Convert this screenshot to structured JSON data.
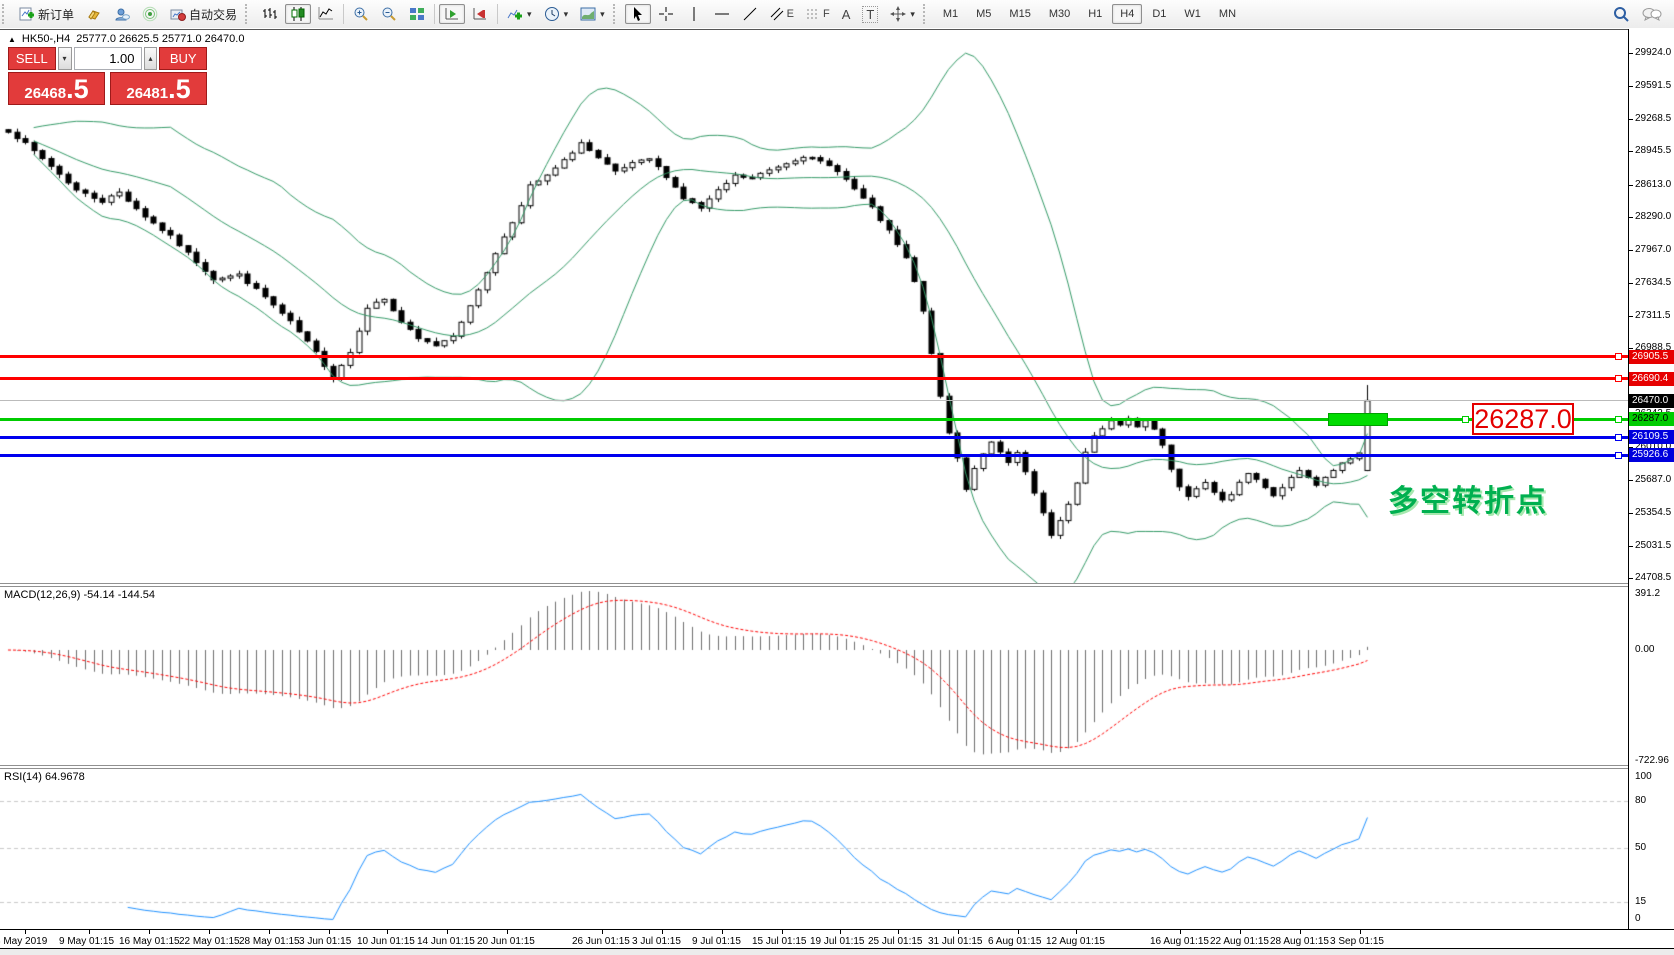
{
  "toolbar": {
    "new_order_label": "新订单",
    "auto_trading_label": "自动交易",
    "timeframes": [
      "M1",
      "M5",
      "M15",
      "M30",
      "H1",
      "H4",
      "D1",
      "W1",
      "MN"
    ],
    "active_timeframe": "H4",
    "tool_letters": {
      "channel": "E",
      "fibonacci": "F",
      "text": "A",
      "label": "T"
    },
    "volume_arrows": {
      "down": "▾",
      "up": "▴"
    },
    "dropdown_glyph": "▾"
  },
  "chart": {
    "title": {
      "collapse_glyph": "▲",
      "symbol_period": "HK50-,H4",
      "ohlc_text": "25777.0 26625.5 25771.0 26470.0"
    },
    "trade_panel": {
      "sell_label": "SELL",
      "buy_label": "BUY",
      "volume": "1.00",
      "sell_price_main": "26468",
      "sell_price_frac": ".5",
      "buy_price_main": "26481",
      "buy_price_frac": ".5"
    },
    "price_axis_ticks": [
      "29924.0",
      "29591.5",
      "29268.5",
      "28945.5",
      "28613.0",
      "28290.0",
      "27967.0",
      "27634.5",
      "27311.5",
      "26988.5",
      "26665.5",
      "26342.5",
      "26010.0",
      "25687.0",
      "25354.5",
      "25031.5",
      "24708.5"
    ],
    "price_tags": [
      {
        "label": "26905.5",
        "price": 26905.5,
        "bg": "#e60000",
        "fg": "#ffffff"
      },
      {
        "label": "26690.4",
        "price": 26690.4,
        "bg": "#e60000",
        "fg": "#ffffff"
      },
      {
        "label": "26470.0",
        "price": 26470.0,
        "bg": "#000000",
        "fg": "#ffffff"
      },
      {
        "label": "26287.0",
        "price": 26287.0,
        "bg": "#00cc00",
        "fg": "#000000"
      },
      {
        "label": "26109.5",
        "price": 26109.5,
        "bg": "#0000dd",
        "fg": "#ffffff"
      },
      {
        "label": "25926.6",
        "price": 25926.6,
        "bg": "#0000dd",
        "fg": "#ffffff"
      }
    ],
    "hlines": [
      {
        "price": 26905.5,
        "color": "#ff0000",
        "thickness": 3
      },
      {
        "price": 26690.4,
        "color": "#ff0000",
        "thickness": 3
      },
      {
        "price": 26470.0,
        "color": "#bbbbbb",
        "thickness": 1
      },
      {
        "price": 26287.0,
        "color": "#00cc00",
        "thickness": 3
      },
      {
        "price": 26109.5,
        "color": "#0000ee",
        "thickness": 3
      },
      {
        "price": 25926.6,
        "color": "#0000ee",
        "thickness": 3
      }
    ],
    "callout": {
      "text": "26287.0"
    },
    "annotation": {
      "text": "多空转折点"
    }
  },
  "indicators": {
    "macd": {
      "label": "MACD(12,26,9)",
      "values": "-54.14 -144.54",
      "axis": [
        "391.2",
        "0.00",
        "-722.96"
      ]
    },
    "rsi": {
      "label": "RSI(14)",
      "value": "64.9678",
      "axis": [
        "100",
        "80",
        "50",
        "15",
        "0"
      ]
    }
  },
  "date_axis": {
    "labels": [
      "3 May 2019",
      "9 May 01:15",
      "16 May 01:15",
      "22 May 01:15",
      "28 May 01:15",
      "3 Jun 01:15",
      "10 Jun 01:15",
      "14 Jun 01:15",
      "20 Jun 01:15",
      "26 Jun 01:15",
      "3 Jul 01:15",
      "9 Jul 01:15",
      "15 Jul 01:15",
      "19 Jul 01:15",
      "25 Jul 01:15",
      "31 Jul 01:15",
      "6 Aug 01:15",
      "12 Aug 01:15",
      "16 Aug 01:15",
      "22 Aug 01:15",
      "28 Aug 01:15",
      "3 Sep 01:15"
    ]
  },
  "chart_data": {
    "type": "candlestick",
    "symbol": "HK50-",
    "period": "H4",
    "title": "HK50-,H4",
    "current_bar_ohlc": {
      "open": 25777.0,
      "high": 26625.5,
      "low": 25771.0,
      "close": 26470.0
    },
    "bid": "26468.5",
    "ask": "26481.5",
    "visible_price_range": [
      24708.5,
      29924.0
    ],
    "visible_date_range": [
      "3 May 2019",
      "3 Sep 2019"
    ],
    "horizontal_levels": [
      26905.5,
      26690.4,
      26470.0,
      26287.0,
      26109.5,
      25926.6
    ],
    "indicators": [
      "Bollinger Bands",
      "MACD(12,26,9)",
      "RSI(14)"
    ],
    "macd_axis_range": [
      -722.96,
      391.2
    ],
    "rsi_levels": [
      80,
      50,
      15
    ],
    "close_anchors": [
      [
        0,
        29150
      ],
      [
        2,
        29020
      ],
      [
        5,
        28800
      ],
      [
        8,
        28560
      ],
      [
        11,
        28450
      ],
      [
        13,
        28540
      ],
      [
        16,
        28300
      ],
      [
        19,
        28100
      ],
      [
        22,
        27850
      ],
      [
        24,
        27680
      ],
      [
        27,
        27720
      ],
      [
        30,
        27500
      ],
      [
        33,
        27250
      ],
      [
        36,
        26950
      ],
      [
        38,
        26700
      ],
      [
        40,
        26950
      ],
      [
        42,
        27400
      ],
      [
        44,
        27480
      ],
      [
        46,
        27250
      ],
      [
        48,
        27080
      ],
      [
        50,
        27020
      ],
      [
        52,
        27120
      ],
      [
        54,
        27400
      ],
      [
        56,
        27750
      ],
      [
        58,
        28100
      ],
      [
        60,
        28400
      ],
      [
        61,
        28600
      ],
      [
        63,
        28700
      ],
      [
        65,
        28850
      ],
      [
        67,
        29030
      ],
      [
        69,
        28870
      ],
      [
        71,
        28740
      ],
      [
        73,
        28820
      ],
      [
        75,
        28870
      ],
      [
        77,
        28700
      ],
      [
        79,
        28480
      ],
      [
        81,
        28380
      ],
      [
        83,
        28550
      ],
      [
        85,
        28700
      ],
      [
        87,
        28680
      ],
      [
        89,
        28760
      ],
      [
        91,
        28830
      ],
      [
        93,
        28900
      ],
      [
        95,
        28840
      ],
      [
        97,
        28760
      ],
      [
        99,
        28570
      ],
      [
        101,
        28380
      ],
      [
        103,
        28150
      ],
      [
        105,
        27880
      ],
      [
        106,
        27650
      ],
      [
        107,
        27350
      ],
      [
        108,
        26950
      ],
      [
        109,
        26500
      ],
      [
        110,
        26150
      ],
      [
        111,
        25900
      ],
      [
        112,
        25600
      ],
      [
        113,
        25800
      ],
      [
        114,
        25950
      ],
      [
        115,
        26050
      ],
      [
        116,
        25950
      ],
      [
        117,
        25850
      ],
      [
        118,
        25950
      ],
      [
        119,
        25750
      ],
      [
        120,
        25550
      ],
      [
        121,
        25350
      ],
      [
        122,
        25120
      ],
      [
        123,
        25280
      ],
      [
        124,
        25450
      ],
      [
        125,
        25650
      ],
      [
        126,
        25950
      ],
      [
        127,
        26110
      ],
      [
        128,
        26200
      ],
      [
        129,
        26270
      ],
      [
        130,
        26230
      ],
      [
        131,
        26290
      ],
      [
        132,
        26220
      ],
      [
        133,
        26280
      ],
      [
        134,
        26190
      ],
      [
        135,
        26030
      ],
      [
        136,
        25800
      ],
      [
        137,
        25630
      ],
      [
        138,
        25530
      ],
      [
        139,
        25610
      ],
      [
        140,
        25670
      ],
      [
        141,
        25550
      ],
      [
        142,
        25470
      ],
      [
        143,
        25550
      ],
      [
        144,
        25670
      ],
      [
        145,
        25750
      ],
      [
        146,
        25690
      ],
      [
        147,
        25600
      ],
      [
        148,
        25530
      ],
      [
        149,
        25610
      ],
      [
        150,
        25700
      ],
      [
        151,
        25770
      ],
      [
        152,
        25700
      ],
      [
        153,
        25630
      ],
      [
        154,
        25700
      ],
      [
        155,
        25780
      ],
      [
        156,
        25850
      ],
      [
        157,
        25900
      ],
      [
        158,
        25950
      ],
      [
        159,
        26470
      ]
    ]
  }
}
